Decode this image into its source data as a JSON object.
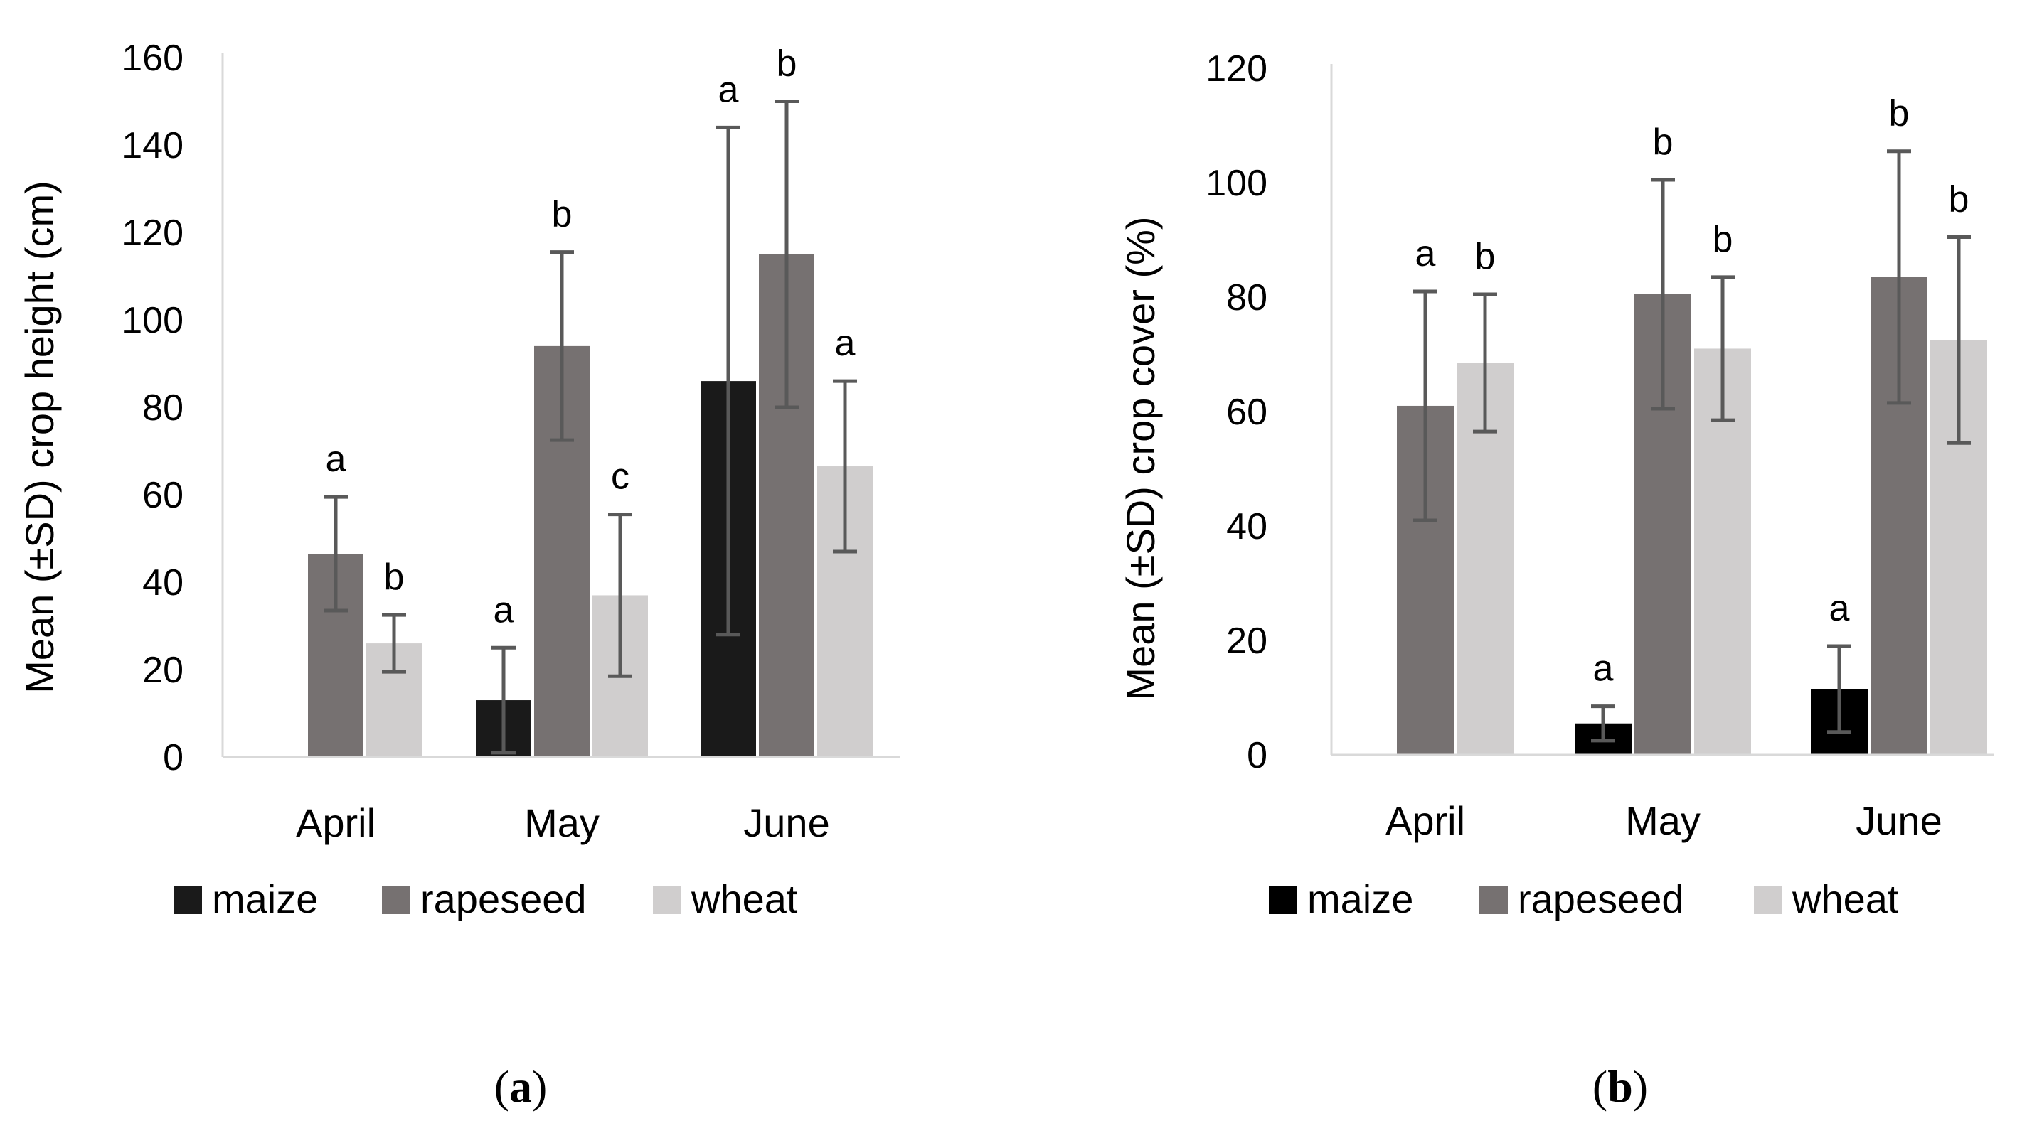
{
  "chart_data": [
    {
      "type": "bar",
      "panel_label": "a",
      "categories": [
        "April",
        "May",
        "June"
      ],
      "ylabel": "Mean (±SD) crop height (cm)",
      "ylim": [
        0,
        160
      ],
      "yticks": [
        0,
        20,
        40,
        60,
        80,
        100,
        120,
        140,
        160
      ],
      "series": [
        {
          "name": "maize",
          "color": "#1a1a1a",
          "values": [
            null,
            13,
            86
          ],
          "sd": [
            null,
            12,
            58
          ],
          "letters": [
            "",
            "a",
            "a"
          ]
        },
        {
          "name": "rapeseed",
          "color": "#767171",
          "values": [
            46.5,
            94,
            115
          ],
          "sd": [
            13,
            21.5,
            35
          ],
          "letters": [
            "a",
            "b",
            "b"
          ]
        },
        {
          "name": "wheat",
          "color": "#d0cece",
          "values": [
            26,
            37,
            66.5
          ],
          "sd": [
            6.5,
            18.5,
            19.5
          ],
          "letters": [
            "b",
            "c",
            "a"
          ]
        }
      ],
      "legend_position": "bottom"
    },
    {
      "type": "bar",
      "panel_label": "b",
      "categories": [
        "April",
        "May",
        "June"
      ],
      "ylabel": "Mean (±SD) crop cover (%)",
      "ylim": [
        0,
        120
      ],
      "yticks": [
        0,
        20,
        40,
        60,
        80,
        100,
        120
      ],
      "series": [
        {
          "name": "maize",
          "color": "#000000",
          "values": [
            null,
            5.5,
            11.5
          ],
          "sd": [
            null,
            3,
            7.5
          ],
          "letters": [
            "",
            "a",
            "a"
          ]
        },
        {
          "name": "rapeseed",
          "color": "#767171",
          "values": [
            61,
            80.5,
            83.5
          ],
          "sd": [
            20,
            20,
            22
          ],
          "letters": [
            "a",
            "b",
            "b"
          ]
        },
        {
          "name": "wheat",
          "color": "#d0cece",
          "values": [
            68.5,
            71,
            72.5
          ],
          "sd": [
            12,
            12.5,
            18
          ],
          "letters": [
            "b",
            "b",
            "b"
          ]
        }
      ],
      "legend_position": "bottom"
    }
  ]
}
